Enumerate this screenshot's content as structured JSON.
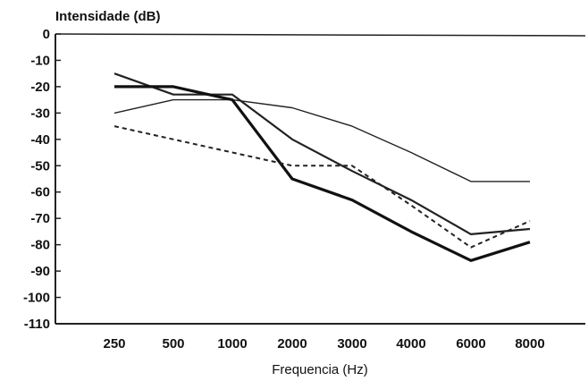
{
  "chart_data": {
    "type": "line",
    "title": "",
    "ylabel": "Intensidade (dB)",
    "xlabel": "Frequencia (Hz)",
    "categories": [
      "250",
      "500",
      "1000",
      "2000",
      "3000",
      "4000",
      "6000",
      "8000"
    ],
    "ylim": [
      -110,
      0
    ],
    "yticks": [
      0,
      -10,
      -20,
      -30,
      -40,
      -50,
      -60,
      -70,
      -80,
      -90,
      -100,
      -110
    ],
    "ytick_labels": [
      "0",
      "-10",
      "-20",
      "-30",
      "-40",
      "-50",
      "-60",
      "-70",
      "-80",
      "-90",
      "-100",
      "-110"
    ],
    "grid": false,
    "series": [
      {
        "style": "thin-solid",
        "color": "#222222",
        "values": [
          -30,
          -25,
          -25,
          -28,
          -35,
          -45,
          -56,
          -56
        ]
      },
      {
        "style": "medium-solid",
        "color": "#222222",
        "values": [
          -15,
          -23,
          -23,
          -40,
          -52,
          -63,
          -76,
          -74
        ]
      },
      {
        "style": "thick-solid",
        "color": "#111111",
        "values": [
          -20,
          -20,
          -25,
          -55,
          -63,
          -75,
          -86,
          -79
        ]
      },
      {
        "style": "dashed",
        "color": "#222222",
        "values": [
          -35,
          -40,
          -45,
          -50,
          -50,
          -65,
          -81,
          -71
        ]
      }
    ]
  }
}
